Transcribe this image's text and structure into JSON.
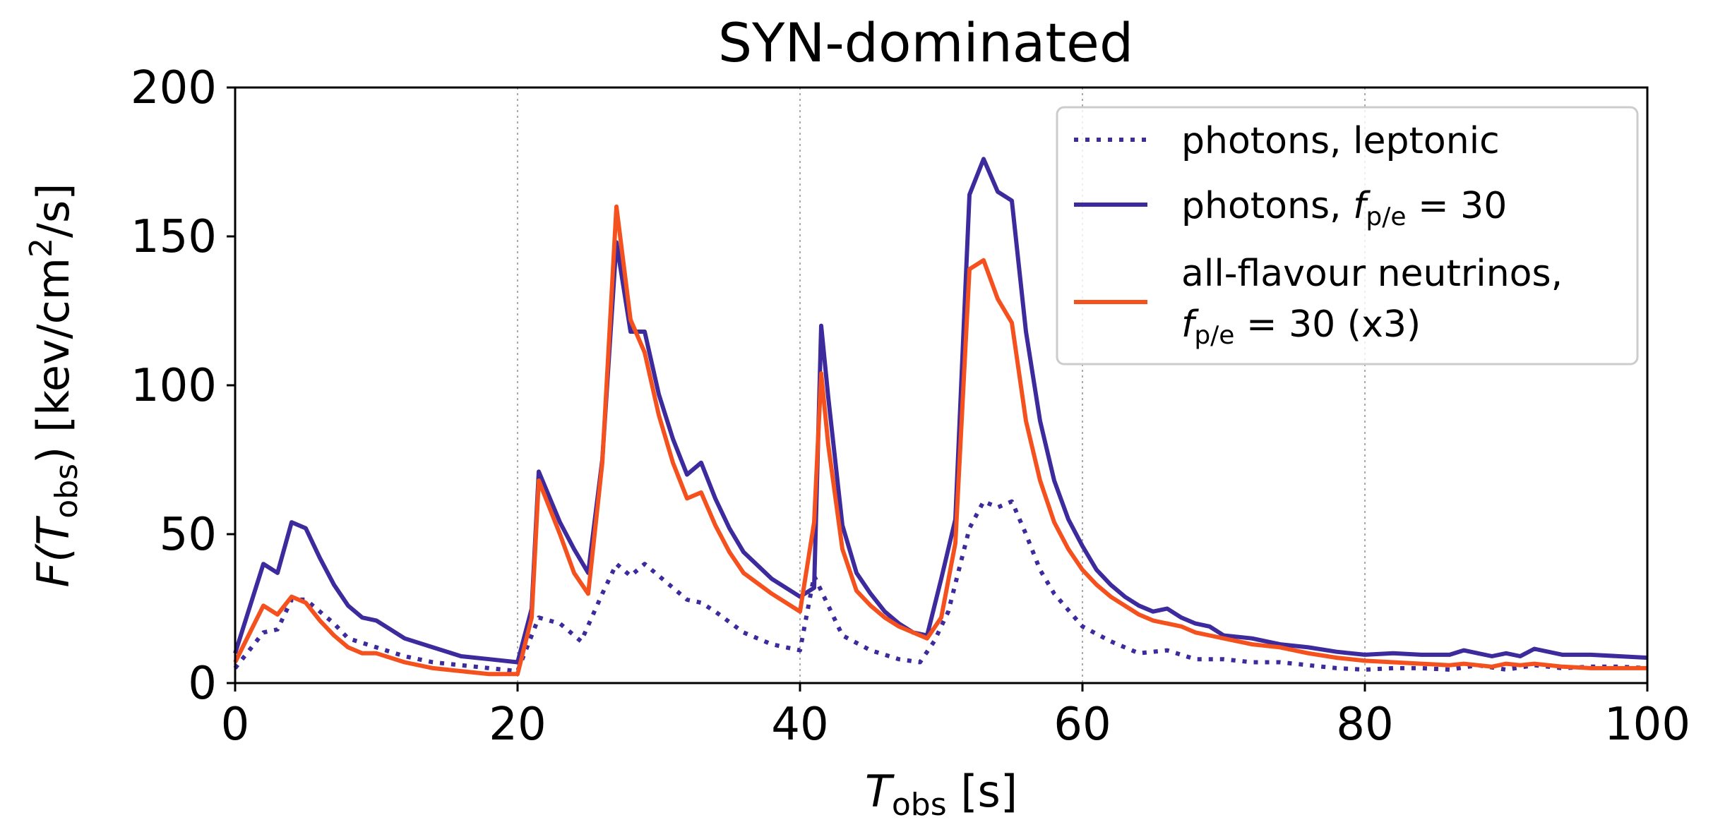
{
  "chart_data": {
    "type": "line",
    "title": "SYN-dominated",
    "xlabel": {
      "main": "T",
      "sub": "obs",
      "unit": " [s]"
    },
    "ylabel": {
      "main": "F(T",
      "sub": "obs",
      "close": ") [kev/cm",
      "sup": "2",
      "end": "/s]"
    },
    "xlim": [
      0,
      100
    ],
    "ylim": [
      0,
      200
    ],
    "xticks": [
      0,
      20,
      40,
      60,
      80,
      100
    ],
    "yticks": [
      0,
      50,
      100,
      150,
      200
    ],
    "vlines": [
      20,
      40,
      60,
      80
    ],
    "legend_position": "top-right",
    "series": [
      {
        "name": "photons, leptonic",
        "style": "dotted",
        "color": "#3d2a9c",
        "x": [
          0,
          2,
          3,
          4,
          5,
          7,
          8,
          10,
          12,
          14,
          16,
          18,
          20,
          21.5,
          23,
          24.5,
          26,
          27,
          28,
          29,
          30,
          32,
          33,
          34,
          36,
          38,
          40,
          41,
          42,
          43,
          45,
          47,
          48.5,
          49.5,
          50.5,
          52,
          53,
          54,
          55,
          56,
          57,
          58,
          60,
          62,
          64,
          66,
          68,
          70,
          72,
          74,
          76,
          78,
          80,
          82,
          84,
          86,
          88,
          90,
          92,
          94,
          96,
          98,
          100
        ],
        "y": [
          5,
          17,
          18,
          28,
          28,
          20,
          15,
          12,
          9,
          7,
          6,
          5,
          4,
          22,
          20,
          14,
          30,
          40,
          36,
          40,
          36,
          28,
          27,
          24,
          17,
          13,
          11,
          36,
          26,
          16,
          11,
          8,
          7,
          14,
          24,
          52,
          61,
          59,
          61,
          50,
          38,
          30,
          19,
          14,
          10,
          11,
          8,
          8,
          7,
          7,
          6,
          5,
          4.5,
          5,
          5,
          4.5,
          6,
          4.5,
          6,
          5,
          5.5,
          5.5,
          5
        ]
      },
      {
        "name": "photons, f_p/e = 30",
        "style": "solid",
        "color": "#3d2a9c",
        "x": [
          0,
          2,
          3,
          4,
          5,
          6,
          7,
          8,
          9,
          10,
          11,
          12,
          14,
          16,
          18,
          20,
          21,
          21.5,
          23,
          24,
          25,
          26,
          27,
          28,
          29,
          30,
          31,
          32,
          33,
          34,
          35,
          36,
          38,
          40,
          41,
          41.5,
          42,
          43,
          44,
          45,
          46,
          47,
          48,
          49,
          50,
          51,
          52,
          53,
          54,
          55,
          56,
          57,
          58,
          59,
          60,
          61,
          62,
          63,
          64,
          65,
          66,
          67,
          68,
          69,
          70,
          72,
          74,
          76,
          78,
          80,
          82,
          84,
          86,
          87,
          88,
          89,
          90,
          91,
          92,
          94,
          96,
          98,
          100
        ],
        "y": [
          10,
          40,
          37,
          54,
          52,
          42,
          33,
          26,
          22,
          21,
          18,
          15,
          12,
          9,
          8,
          7,
          25,
          71,
          54,
          45,
          37,
          75,
          148,
          118,
          118,
          97,
          82,
          70,
          74,
          62,
          52,
          44,
          35,
          29,
          32,
          120,
          96,
          53,
          37,
          30,
          24,
          20,
          17,
          16,
          35,
          55,
          164,
          176,
          165,
          162,
          118,
          88,
          68,
          55,
          46,
          38,
          33,
          29,
          26,
          24,
          25,
          22,
          20,
          19,
          16,
          15,
          13,
          12,
          10.5,
          9.5,
          10,
          9.5,
          9.5,
          11,
          10,
          9,
          10,
          9,
          11.5,
          9.5,
          9.5,
          9,
          8.5
        ]
      },
      {
        "name": "all-flavour neutrinos, f_p/e = 30 (x3)",
        "style": "solid",
        "color": "#f4511e",
        "x": [
          0,
          2,
          3,
          4,
          5,
          6,
          7,
          8,
          9,
          10,
          12,
          14,
          16,
          18,
          20,
          21,
          21.5,
          23,
          24,
          25,
          26,
          27,
          28,
          29,
          30,
          31,
          32,
          33,
          34,
          35,
          36,
          38,
          40,
          41,
          41.5,
          42,
          43,
          44,
          45,
          46,
          47,
          48,
          49,
          50,
          51,
          52,
          53,
          54,
          55,
          56,
          57,
          58,
          59,
          60,
          61,
          62,
          63,
          64,
          65,
          66,
          67,
          68,
          69,
          70,
          72,
          74,
          76,
          78,
          80,
          82,
          84,
          86,
          87,
          88,
          89,
          90,
          91,
          92,
          94,
          96,
          98,
          100
        ],
        "y": [
          7,
          26,
          23,
          29,
          27,
          21,
          16,
          12,
          10,
          10,
          7,
          5,
          4,
          3,
          3,
          22,
          68,
          50,
          37,
          30,
          74,
          160,
          122,
          111,
          90,
          74,
          62,
          64,
          53,
          44,
          37,
          30,
          24,
          54,
          104,
          80,
          45,
          31,
          26,
          22,
          19,
          17,
          15,
          22,
          47,
          139,
          142,
          129,
          121,
          88,
          68,
          54,
          45,
          38,
          33,
          29,
          26,
          23,
          21,
          20,
          19,
          17,
          16,
          15,
          13,
          12,
          10,
          8.5,
          7.5,
          7,
          6.5,
          6,
          6.5,
          6,
          5.5,
          6.5,
          6,
          6.5,
          5.5,
          5,
          5,
          5
        ]
      }
    ]
  },
  "legend": {
    "entries": [
      {
        "text": "photons, leptonic"
      },
      {
        "text": "photons, ",
        "sym": "f",
        "sub": "p/e",
        "after": " = 30"
      },
      {
        "text": "all-flavour neutrinos,",
        "sym": "f",
        "sub": "p/e",
        "after": " = 30 (x3)"
      }
    ]
  }
}
